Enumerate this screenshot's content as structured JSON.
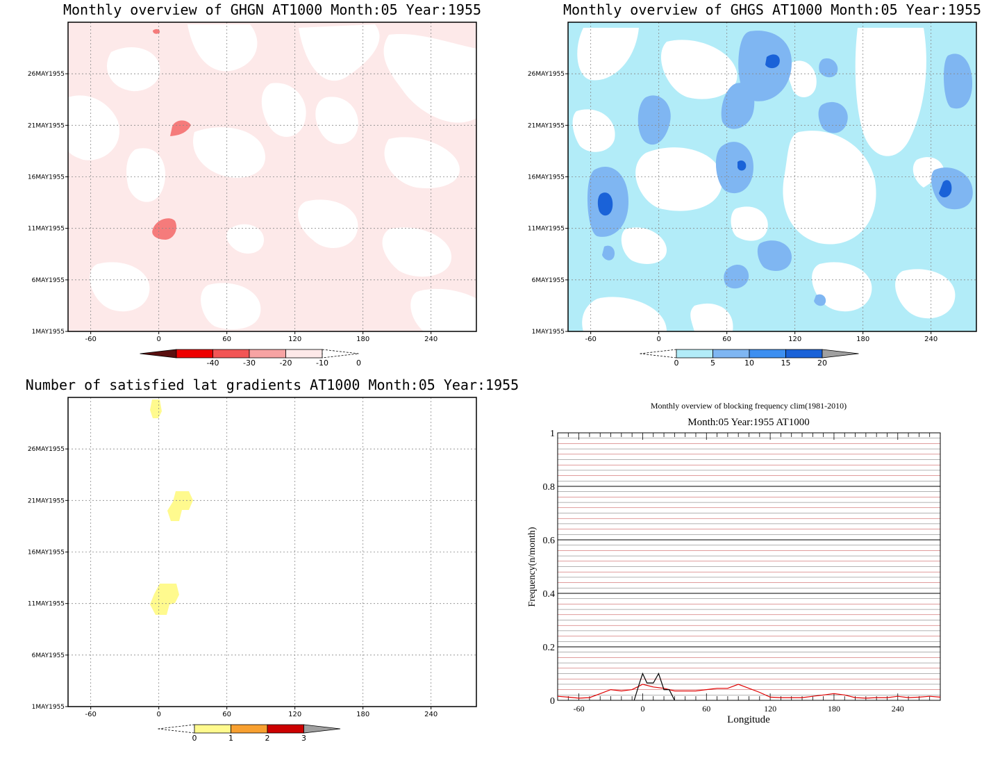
{
  "chart_data": [
    {
      "type": "heatmap",
      "title": "Monthly overview of GHGN AT1000 Month:05 Year:1955",
      "x_ticks": [
        -60,
        0,
        60,
        120,
        180,
        240
      ],
      "xlim": [
        -80,
        280
      ],
      "y_ticks": [
        "1MAY1955",
        "6MAY1955",
        "11MAY1955",
        "16MAY1955",
        "21MAY1955",
        "26MAY1955"
      ],
      "grid": true,
      "colorbar": {
        "labels": [
          "-40",
          "-30",
          "-20",
          "-10",
          "0"
        ],
        "colors": [
          "#5a0f0f",
          "#ee0000",
          "#f25555",
          "#f7a3a3",
          "#fde9e9"
        ]
      }
    },
    {
      "type": "heatmap",
      "title": "Monthly overview of GHGS AT1000 Month:05 Year:1955",
      "x_ticks": [
        -60,
        0,
        60,
        120,
        180,
        240
      ],
      "xlim": [
        -80,
        280
      ],
      "y_ticks": [
        "1MAY1955",
        "6MAY1955",
        "11MAY1955",
        "16MAY1955",
        "21MAY1955",
        "26MAY1955"
      ],
      "grid": true,
      "colorbar": {
        "labels": [
          "0",
          "5",
          "10",
          "15",
          "20"
        ],
        "colors": [
          "#b2ecf8",
          "#7fb6f2",
          "#3d8ff0",
          "#1a62d8",
          "#a0a0a0"
        ]
      }
    },
    {
      "type": "heatmap",
      "title": "Number of satisfied lat gradients AT1000 Month:05 Year:1955",
      "x_ticks": [
        -60,
        0,
        60,
        120,
        180,
        240
      ],
      "xlim": [
        -80,
        280
      ],
      "y_ticks": [
        "1MAY1955",
        "6MAY1955",
        "11MAY1955",
        "16MAY1955",
        "21MAY1955",
        "26MAY1955"
      ],
      "grid": true,
      "colorbar": {
        "labels": [
          "0",
          "1",
          "2",
          "3"
        ],
        "colors": [
          "#fffa8e",
          "#f8a030",
          "#cc0000",
          "#a0a0a0"
        ]
      }
    },
    {
      "type": "line",
      "title": "Monthly overview of blocking frequency clim(1981-2010)",
      "subtitle": "Month:05 Year:1955  AT1000",
      "xlabel": "Longitude",
      "ylabel": "Frequency(n/month)",
      "xlim": [
        -80,
        280
      ],
      "ylim": [
        0,
        1
      ],
      "x_ticks": [
        -60,
        0,
        60,
        120,
        180,
        240
      ],
      "y_ticks": [
        0,
        0.2,
        0.4,
        0.6,
        0.8,
        1
      ],
      "y_tick_labels": [
        "0",
        "0.2",
        "0.4",
        "0.6",
        "0.8",
        "1"
      ],
      "series": [
        {
          "color": "#e00000",
          "x": [
            -80,
            -70,
            -60,
            -50,
            -40,
            -30,
            -20,
            -10,
            -5,
            0,
            10,
            20,
            30,
            40,
            50,
            60,
            70,
            80,
            90,
            100,
            110,
            120,
            130,
            140,
            150,
            160,
            170,
            180,
            190,
            200,
            210,
            220,
            230,
            240,
            250,
            260,
            270,
            280
          ],
          "y": [
            0.015,
            0.012,
            0.008,
            0.01,
            0.025,
            0.04,
            0.035,
            0.04,
            0.05,
            0.06,
            0.05,
            0.045,
            0.035,
            0.035,
            0.035,
            0.04,
            0.045,
            0.045,
            0.06,
            0.045,
            0.03,
            0.012,
            0.01,
            0.01,
            0.01,
            0.015,
            0.02,
            0.025,
            0.02,
            0.01,
            0.008,
            0.01,
            0.01,
            0.015,
            0.01,
            0.012,
            0.015,
            0.012
          ]
        },
        {
          "color": "#000000",
          "x": [
            -8,
            -3,
            0,
            4,
            10,
            15,
            20,
            25,
            30
          ],
          "y": [
            0,
            0.065,
            0.1,
            0.065,
            0.065,
            0.1,
            0.04,
            0.04,
            0
          ]
        }
      ]
    }
  ]
}
